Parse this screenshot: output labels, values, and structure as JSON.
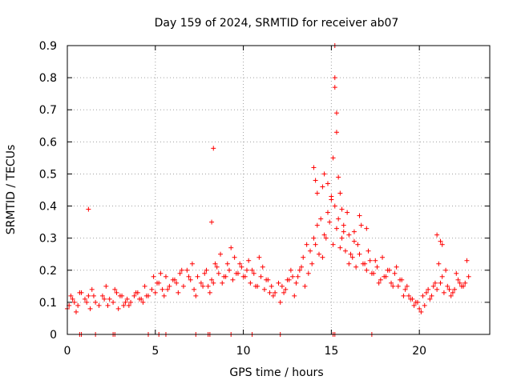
{
  "chart_data": {
    "type": "scatter",
    "title": "Day 159 of 2024, SRMTID for receiver ab07",
    "xlabel": "GPS time / hours",
    "ylabel": "SRMTID / TECUs",
    "xlim": [
      0,
      24
    ],
    "ylim": [
      0,
      0.9
    ],
    "xticks": [
      0,
      5,
      10,
      15,
      20
    ],
    "yticks": [
      0,
      0.1,
      0.2,
      0.3,
      0.4,
      0.5,
      0.6,
      0.7,
      0.8,
      0.9
    ],
    "xtick_labels": [
      "0",
      "5",
      "10",
      "15",
      "20"
    ],
    "ytick_labels": [
      "0",
      "0.1",
      "0.2",
      "0.3",
      "0.4",
      "0.5",
      "0.6",
      "0.7",
      "0.8",
      "0.9"
    ],
    "grid": true,
    "marker": "+",
    "color": "#ff0000",
    "series": [
      {
        "name": "SRMTID",
        "x": [
          0.0,
          0.2,
          0.4,
          0.6,
          0.8,
          1.0,
          1.2,
          1.4,
          1.6,
          1.8,
          2.0,
          2.2,
          2.4,
          2.6,
          2.8,
          3.0,
          3.2,
          3.4,
          3.6,
          3.8,
          4.0,
          4.2,
          4.4,
          4.6,
          4.8,
          5.0,
          5.2,
          5.4,
          5.6,
          5.8,
          6.0,
          6.2,
          6.4,
          6.6,
          6.8,
          7.0,
          7.2,
          7.4,
          7.6,
          7.8,
          8.0,
          8.2,
          8.4,
          8.6,
          8.8,
          9.0,
          9.2,
          9.4,
          9.6,
          9.8,
          10.0,
          10.2,
          10.4,
          10.6,
          10.8,
          11.0,
          11.2,
          11.4,
          11.6,
          11.8,
          12.0,
          12.2,
          12.4,
          12.6,
          12.8,
          13.0,
          13.2,
          13.4,
          13.6,
          13.8,
          14.0,
          14.2,
          14.4,
          14.6,
          14.8,
          15.0,
          15.2,
          15.4,
          15.6,
          15.8,
          16.0,
          16.2,
          16.4,
          16.6,
          16.8,
          17.0,
          17.2,
          17.4,
          17.6,
          17.8,
          18.0,
          18.2,
          18.4,
          18.6,
          18.8,
          19.0,
          19.2,
          19.4,
          19.6,
          19.8,
          20.0,
          20.2,
          20.4,
          20.6,
          20.8,
          21.0,
          21.2,
          21.4,
          21.6,
          21.8,
          22.0,
          22.2,
          22.4,
          22.6,
          22.8,
          0.1,
          0.3,
          0.5,
          0.7,
          1.1,
          1.3,
          1.5,
          2.1,
          2.3,
          2.7,
          2.9,
          3.1,
          3.3,
          3.5,
          3.9,
          4.1,
          4.3,
          4.5,
          4.9,
          5.1,
          5.3,
          5.5,
          5.7,
          6.1,
          6.3,
          6.5,
          6.9,
          7.1,
          7.3,
          7.7,
          7.9,
          8.1,
          8.3,
          8.5,
          8.7,
          8.9,
          9.1,
          9.3,
          9.5,
          9.7,
          9.9,
          10.1,
          10.3,
          10.5,
          10.7,
          10.9,
          11.1,
          11.3,
          11.5,
          11.7,
          12.1,
          12.3,
          12.5,
          12.7,
          12.9,
          13.1,
          13.3,
          13.5,
          13.7,
          13.9,
          14.1,
          14.3,
          14.5,
          14.7,
          14.9,
          15.1,
          15.3,
          15.5,
          15.7,
          15.9,
          16.1,
          16.3,
          16.5,
          16.7,
          16.9,
          17.1,
          17.3,
          17.5,
          17.7,
          17.9,
          18.1,
          18.3,
          18.5,
          18.7,
          18.9,
          19.1,
          19.3,
          19.5,
          19.7,
          19.9,
          20.1,
          20.3,
          20.5,
          20.7,
          20.9,
          21.1,
          21.3,
          21.5,
          21.7,
          21.9,
          22.1,
          22.3,
          22.5,
          22.7,
          1.2,
          8.2,
          8.3,
          14.0,
          14.1,
          14.2,
          14.5,
          14.6,
          14.8,
          15.0,
          15.1,
          15.2,
          15.2,
          15.2,
          15.3,
          15.3,
          15.4,
          15.5,
          15.6,
          15.7,
          16.0,
          16.3,
          16.6,
          17.0,
          21.0,
          21.2,
          21.3
        ],
        "y": [
          0.08,
          0.12,
          0.1,
          0.09,
          0.13,
          0.11,
          0.12,
          0.14,
          0.1,
          0.09,
          0.12,
          0.15,
          0.11,
          0.1,
          0.13,
          0.12,
          0.09,
          0.11,
          0.1,
          0.12,
          0.13,
          0.11,
          0.15,
          0.12,
          0.14,
          0.13,
          0.16,
          0.14,
          0.18,
          0.15,
          0.17,
          0.16,
          0.19,
          0.15,
          0.2,
          0.17,
          0.14,
          0.18,
          0.16,
          0.19,
          0.15,
          0.17,
          0.22,
          0.19,
          0.16,
          0.18,
          0.2,
          0.17,
          0.19,
          0.22,
          0.18,
          0.2,
          0.16,
          0.19,
          0.15,
          0.18,
          0.14,
          0.17,
          0.15,
          0.13,
          0.16,
          0.15,
          0.14,
          0.17,
          0.18,
          0.16,
          0.2,
          0.24,
          0.28,
          0.26,
          0.3,
          0.34,
          0.36,
          0.31,
          0.38,
          0.42,
          0.4,
          0.36,
          0.3,
          0.26,
          0.22,
          0.24,
          0.21,
          0.25,
          0.22,
          0.2,
          0.23,
          0.19,
          0.21,
          0.17,
          0.18,
          0.2,
          0.16,
          0.19,
          0.15,
          0.17,
          0.14,
          0.12,
          0.11,
          0.1,
          0.08,
          0.12,
          0.13,
          0.11,
          0.15,
          0.14,
          0.16,
          0.13,
          0.15,
          0.12,
          0.14,
          0.17,
          0.15,
          0.16,
          0.18,
          0.09,
          0.11,
          0.07,
          0.13,
          0.1,
          0.08,
          0.12,
          0.11,
          0.09,
          0.14,
          0.08,
          0.12,
          0.1,
          0.09,
          0.13,
          0.11,
          0.1,
          0.12,
          0.18,
          0.16,
          0.19,
          0.12,
          0.14,
          0.17,
          0.13,
          0.2,
          0.18,
          0.22,
          0.12,
          0.15,
          0.2,
          0.13,
          0.16,
          0.21,
          0.25,
          0.18,
          0.22,
          0.27,
          0.24,
          0.19,
          0.21,
          0.18,
          0.23,
          0.2,
          0.15,
          0.24,
          0.21,
          0.17,
          0.13,
          0.12,
          0.1,
          0.13,
          0.17,
          0.2,
          0.12,
          0.18,
          0.21,
          0.15,
          0.19,
          0.22,
          0.28,
          0.25,
          0.24,
          0.3,
          0.35,
          0.28,
          0.33,
          0.27,
          0.32,
          0.38,
          0.25,
          0.32,
          0.28,
          0.34,
          0.22,
          0.26,
          0.19,
          0.23,
          0.16,
          0.24,
          0.18,
          0.2,
          0.15,
          0.21,
          0.17,
          0.12,
          0.15,
          0.11,
          0.09,
          0.1,
          0.07,
          0.09,
          0.14,
          0.12,
          0.16,
          0.22,
          0.18,
          0.2,
          0.14,
          0.13,
          0.19,
          0.16,
          0.15,
          0.23,
          0.39,
          0.35,
          0.58,
          0.52,
          0.48,
          0.44,
          0.46,
          0.5,
          0.47,
          0.43,
          0.55,
          0.9,
          0.8,
          0.77,
          0.69,
          0.63,
          0.49,
          0.44,
          0.39,
          0.34,
          0.31,
          0.29,
          0.37,
          0.33,
          0.31,
          0.29,
          0.28
        ]
      }
    ],
    "bottom_strip_hours": [
      0.7,
      0.8,
      1.6,
      2.6,
      2.7,
      4.6,
      5.2,
      5.6,
      7.3,
      8.0,
      8.1,
      9.3,
      10.5,
      12.1,
      15.1,
      15.2,
      17.3
    ]
  },
  "colors": {
    "series": "#ff0000",
    "grid": "#a0a0a0",
    "frame": "#000000",
    "background": "#ffffff"
  }
}
